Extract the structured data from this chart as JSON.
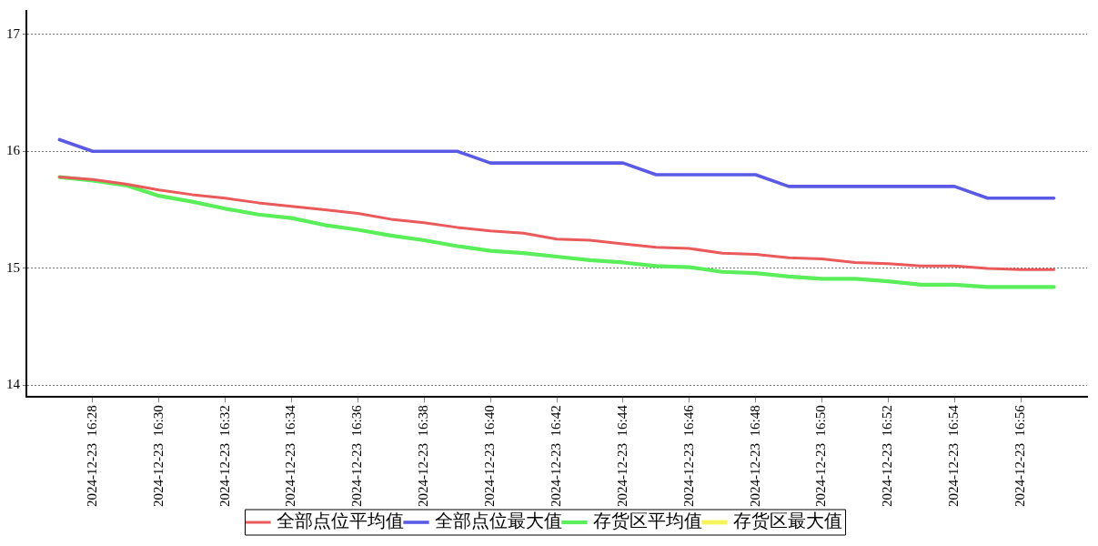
{
  "chart_data": {
    "type": "line",
    "x": [
      "2024-12-23T16:27",
      "2024-12-23T16:28",
      "2024-12-23T16:29",
      "2024-12-23T16:30",
      "2024-12-23T16:31",
      "2024-12-23T16:32",
      "2024-12-23T16:33",
      "2024-12-23T16:34",
      "2024-12-23T16:35",
      "2024-12-23T16:36",
      "2024-12-23T16:37",
      "2024-12-23T16:38",
      "2024-12-23T16:39",
      "2024-12-23T16:40",
      "2024-12-23T16:41",
      "2024-12-23T16:42",
      "2024-12-23T16:43",
      "2024-12-23T16:44",
      "2024-12-23T16:45",
      "2024-12-23T16:46",
      "2024-12-23T16:47",
      "2024-12-23T16:48",
      "2024-12-23T16:49",
      "2024-12-23T16:50",
      "2024-12-23T16:51",
      "2024-12-23T16:52",
      "2024-12-23T16:53",
      "2024-12-23T16:54",
      "2024-12-23T16:55",
      "2024-12-23T16:56",
      "2024-12-23T16:57"
    ],
    "series": [
      {
        "name": "全部点位平均值",
        "color": "#ea5a5a",
        "values": [
          15.78,
          15.76,
          15.72,
          15.67,
          15.63,
          15.6,
          15.56,
          15.53,
          15.5,
          15.47,
          15.42,
          15.39,
          15.35,
          15.32,
          15.3,
          15.25,
          15.24,
          15.21,
          15.18,
          15.17,
          15.13,
          15.12,
          15.09,
          15.08,
          15.05,
          15.04,
          15.02,
          15.02,
          15.0,
          14.99,
          14.99
        ]
      },
      {
        "name": "全部点位最大值",
        "color": "#5a5ae6",
        "values": [
          16.1,
          16.0,
          16.0,
          16.0,
          16.0,
          16.0,
          16.0,
          16.0,
          16.0,
          16.0,
          16.0,
          16.0,
          16.0,
          15.9,
          15.9,
          15.9,
          15.9,
          15.9,
          15.8,
          15.8,
          15.8,
          15.8,
          15.7,
          15.7,
          15.7,
          15.7,
          15.7,
          15.7,
          15.6,
          15.6,
          15.6
        ]
      },
      {
        "name": "存货区平均值",
        "color": "#5aee5a",
        "values": [
          15.78,
          15.75,
          15.71,
          15.62,
          15.57,
          15.51,
          15.46,
          15.43,
          15.37,
          15.33,
          15.28,
          15.24,
          15.19,
          15.15,
          15.13,
          15.1,
          15.07,
          15.05,
          15.02,
          15.01,
          14.97,
          14.96,
          14.93,
          14.91,
          14.91,
          14.89,
          14.86,
          14.86,
          14.84,
          14.84,
          14.84
        ]
      },
      {
        "name": "存货区最大值",
        "color": "#f5f55a",
        "values": [
          null,
          null,
          null,
          null,
          null,
          null,
          null,
          null,
          null,
          null,
          null,
          null,
          null,
          null,
          null,
          null,
          null,
          null,
          null,
          null,
          null,
          null,
          null,
          null,
          null,
          null,
          null,
          null,
          null,
          null,
          null
        ]
      }
    ],
    "xlim": [
      "2024-12-23T16:26",
      "2024-12-23T16:58"
    ],
    "xticks": [
      {
        "value": "2024-12-23T16:28",
        "label": "2024-12-23  16:28"
      },
      {
        "value": "2024-12-23T16:30",
        "label": "2024-12-23  16:30"
      },
      {
        "value": "2024-12-23T16:32",
        "label": "2024-12-23  16:32"
      },
      {
        "value": "2024-12-23T16:34",
        "label": "2024-12-23  16:34"
      },
      {
        "value": "2024-12-23T16:36",
        "label": "2024-12-23  16:36"
      },
      {
        "value": "2024-12-23T16:38",
        "label": "2024-12-23  16:38"
      },
      {
        "value": "2024-12-23T16:40",
        "label": "2024-12-23  16:40"
      },
      {
        "value": "2024-12-23T16:42",
        "label": "2024-12-23  16:42"
      },
      {
        "value": "2024-12-23T16:44",
        "label": "2024-12-23  16:44"
      },
      {
        "value": "2024-12-23T16:46",
        "label": "2024-12-23  16:46"
      },
      {
        "value": "2024-12-23T16:48",
        "label": "2024-12-23  16:48"
      },
      {
        "value": "2024-12-23T16:50",
        "label": "2024-12-23  16:50"
      },
      {
        "value": "2024-12-23T16:52",
        "label": "2024-12-23  16:52"
      },
      {
        "value": "2024-12-23T16:54",
        "label": "2024-12-23  16:54"
      },
      {
        "value": "2024-12-23T16:56",
        "label": "2024-12-23  16:56"
      }
    ],
    "ylim": [
      13.9,
      17.2
    ],
    "yticks": [
      14,
      15,
      16,
      17
    ],
    "grid": "y",
    "legend": "bottom",
    "marker": "none",
    "line_style": "solid"
  }
}
